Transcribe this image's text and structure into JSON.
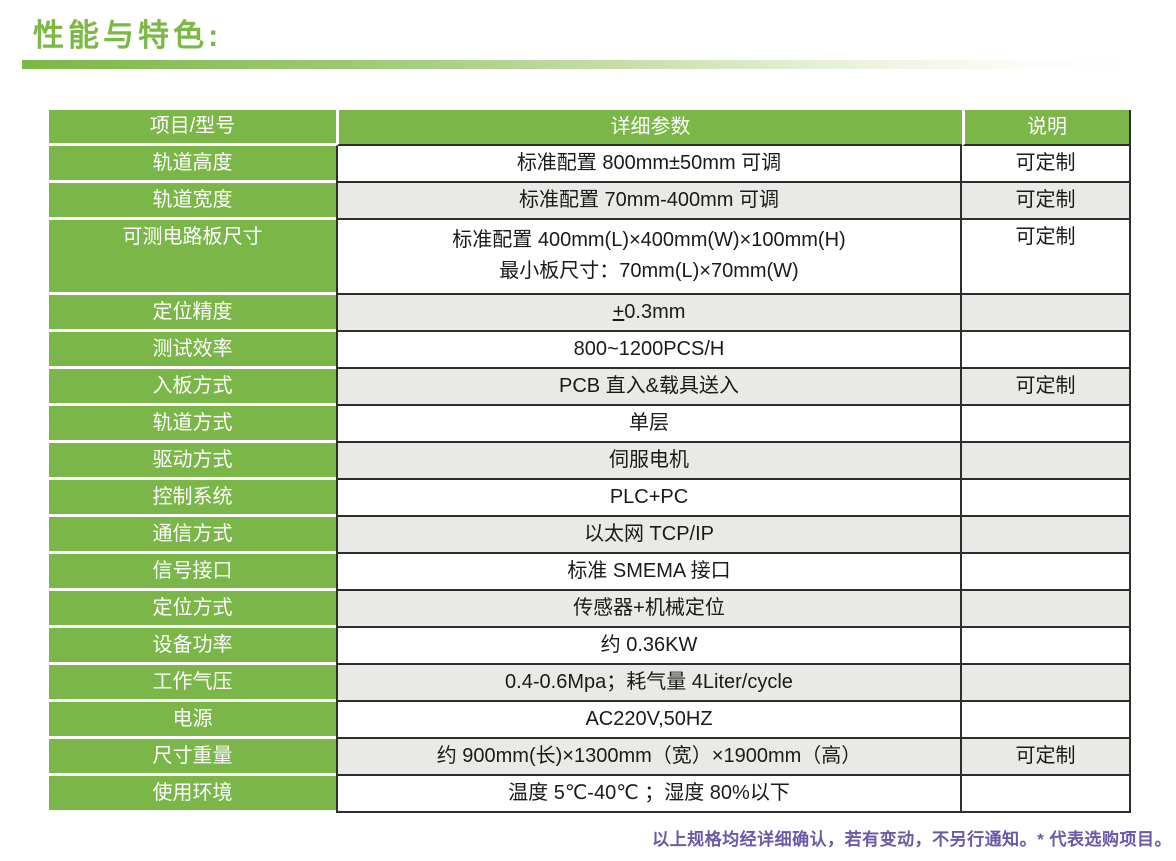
{
  "page": {
    "title": "性能与特色:",
    "footer_note": "以上规格均经详细确认，若有变动，不另行通知。* 代表选购项目。"
  },
  "colors": {
    "accent_green": "#7ab648",
    "title_green": "#7cb845",
    "alt_row_gray": "#e9e9e6",
    "border_dark": "#2e2e2e",
    "footer_purple": "#6a58a8"
  },
  "table": {
    "headers": [
      "项目/型号",
      "详细参数",
      "说明"
    ],
    "rows": [
      {
        "label": "轨道高度",
        "values": [
          "标准配置 800mm±50mm 可调"
        ],
        "note": "可定制"
      },
      {
        "label": "轨道宽度",
        "values": [
          "标准配置 70mm-400mm 可调"
        ],
        "note": "可定制"
      },
      {
        "label": "可测电路板尺寸",
        "values": [
          "标准配置 400mm(L)×400mm(W)×100mm(H)",
          "最小板尺寸：70mm(L)×70mm(W)"
        ],
        "note": "可定制",
        "tall": true
      },
      {
        "label": "定位精度",
        "values": [
          "+0.3mm"
        ],
        "note": "",
        "underline_first_char": true
      },
      {
        "label": "测试效率",
        "values": [
          "800~1200PCS/H"
        ],
        "note": ""
      },
      {
        "label": "入板方式",
        "values": [
          "PCB 直入&载具送入"
        ],
        "note": "可定制"
      },
      {
        "label": "轨道方式",
        "values": [
          "单层"
        ],
        "note": ""
      },
      {
        "label": "驱动方式",
        "values": [
          "伺服电机"
        ],
        "note": ""
      },
      {
        "label": "控制系统",
        "values": [
          "PLC+PC"
        ],
        "note": ""
      },
      {
        "label": "通信方式",
        "values": [
          "以太网 TCP/IP"
        ],
        "note": ""
      },
      {
        "label": "信号接口",
        "values": [
          "标准 SMEMA 接口"
        ],
        "note": ""
      },
      {
        "label": "定位方式",
        "values": [
          "传感器+机械定位"
        ],
        "note": ""
      },
      {
        "label": "设备功率",
        "values": [
          "约 0.36KW"
        ],
        "note": ""
      },
      {
        "label": "工作气压",
        "values": [
          "0.4-0.6Mpa；耗气量 4Liter/cycle"
        ],
        "note": ""
      },
      {
        "label": "电源",
        "values": [
          "AC220V,50HZ"
        ],
        "note": ""
      },
      {
        "label": "尺寸重量",
        "values": [
          "约 900mm(长)×1300mm（宽）×1900mm（高）"
        ],
        "note": "可定制"
      },
      {
        "label": "使用环境",
        "values": [
          "温度 5℃-40℃ ；湿度 80%以下"
        ],
        "note": ""
      }
    ]
  }
}
